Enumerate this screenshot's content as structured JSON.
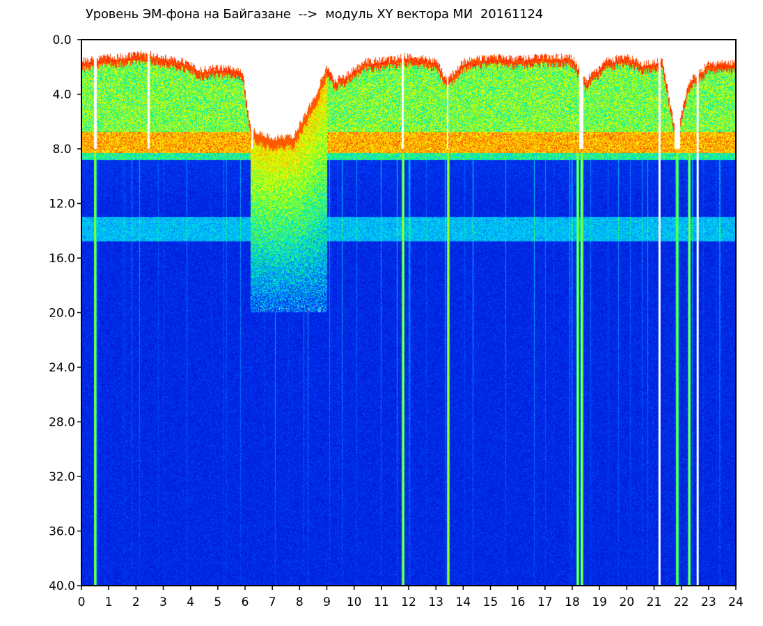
{
  "chart_data": {
    "type": "heatmap",
    "title": "Уровень ЭМ-фона на Байгазане  -->  модуль XY вектора МИ  20161124",
    "xlabel": "",
    "ylabel": "",
    "xlim": [
      0,
      24
    ],
    "ylim": [
      0,
      40
    ],
    "y_inverted": true,
    "x_ticks": [
      "0",
      "1",
      "2",
      "3",
      "4",
      "5",
      "6",
      "7",
      "8",
      "9",
      "10",
      "11",
      "12",
      "13",
      "14",
      "15",
      "16",
      "17",
      "18",
      "19",
      "20",
      "21",
      "22",
      "23",
      "24"
    ],
    "y_ticks": [
      "0.0",
      "4.0",
      "8.0",
      "12.0",
      "16.0",
      "20.0",
      "24.0",
      "28.0",
      "32.0",
      "36.0",
      "40.0"
    ],
    "colormap": [
      "#0000c8",
      "#0050ff",
      "#00d0ff",
      "#00ff80",
      "#c0ff00",
      "#ffff00",
      "#ff8000",
      "#ff0000"
    ],
    "background_color": "#0a22d8",
    "grid": false,
    "legend": "none",
    "features": {
      "active_top_boundary_y": [
        [
          0.3,
          1.5
        ],
        [
          0.55,
          1.3
        ],
        [
          1.5,
          1.2
        ],
        [
          2.4,
          1.0
        ],
        [
          2.65,
          1.1
        ],
        [
          3.6,
          1.5
        ],
        [
          4.0,
          1.8
        ],
        [
          4.4,
          2.2
        ],
        [
          5.0,
          2.0
        ],
        [
          5.9,
          2.2
        ],
        [
          6.2,
          6.5
        ],
        [
          7.0,
          7.2
        ],
        [
          7.8,
          7.0
        ],
        [
          8.6,
          4.0
        ],
        [
          9.0,
          2.0
        ],
        [
          9.3,
          3.0
        ],
        [
          9.8,
          2.5
        ],
        [
          10.4,
          1.6
        ],
        [
          11.5,
          1.4
        ],
        [
          11.8,
          1.2
        ],
        [
          13.0,
          1.5
        ],
        [
          13.4,
          3.0
        ],
        [
          14.0,
          1.6
        ],
        [
          15.0,
          1.2
        ],
        [
          16.0,
          1.4
        ],
        [
          17.0,
          1.2
        ],
        [
          18.0,
          1.3
        ],
        [
          18.5,
          3.0
        ],
        [
          19.2,
          1.6
        ],
        [
          20.0,
          1.2
        ],
        [
          20.6,
          1.8
        ],
        [
          21.3,
          1.5
        ],
        [
          21.8,
          7.0
        ],
        [
          22.3,
          3.0
        ],
        [
          23.0,
          1.8
        ],
        [
          24.0,
          1.6
        ]
      ],
      "gap_intervals_x": [
        [
          0.45,
          0.55
        ],
        [
          2.42,
          2.5
        ],
        [
          6.22,
          6.3
        ],
        [
          11.75,
          11.82
        ],
        [
          13.4,
          13.46
        ],
        [
          18.25,
          18.4
        ],
        [
          21.75,
          21.95
        ]
      ],
      "disturbed_interval_x": [
        6.2,
        9.0
      ],
      "dense_band_y": [
        13.0,
        14.8
      ],
      "white_lines_x": [
        21.2,
        22.6
      ],
      "bright_lines_x": [
        0.5,
        11.8,
        13.45,
        18.2,
        18.35,
        21.85,
        22.3
      ]
    }
  }
}
